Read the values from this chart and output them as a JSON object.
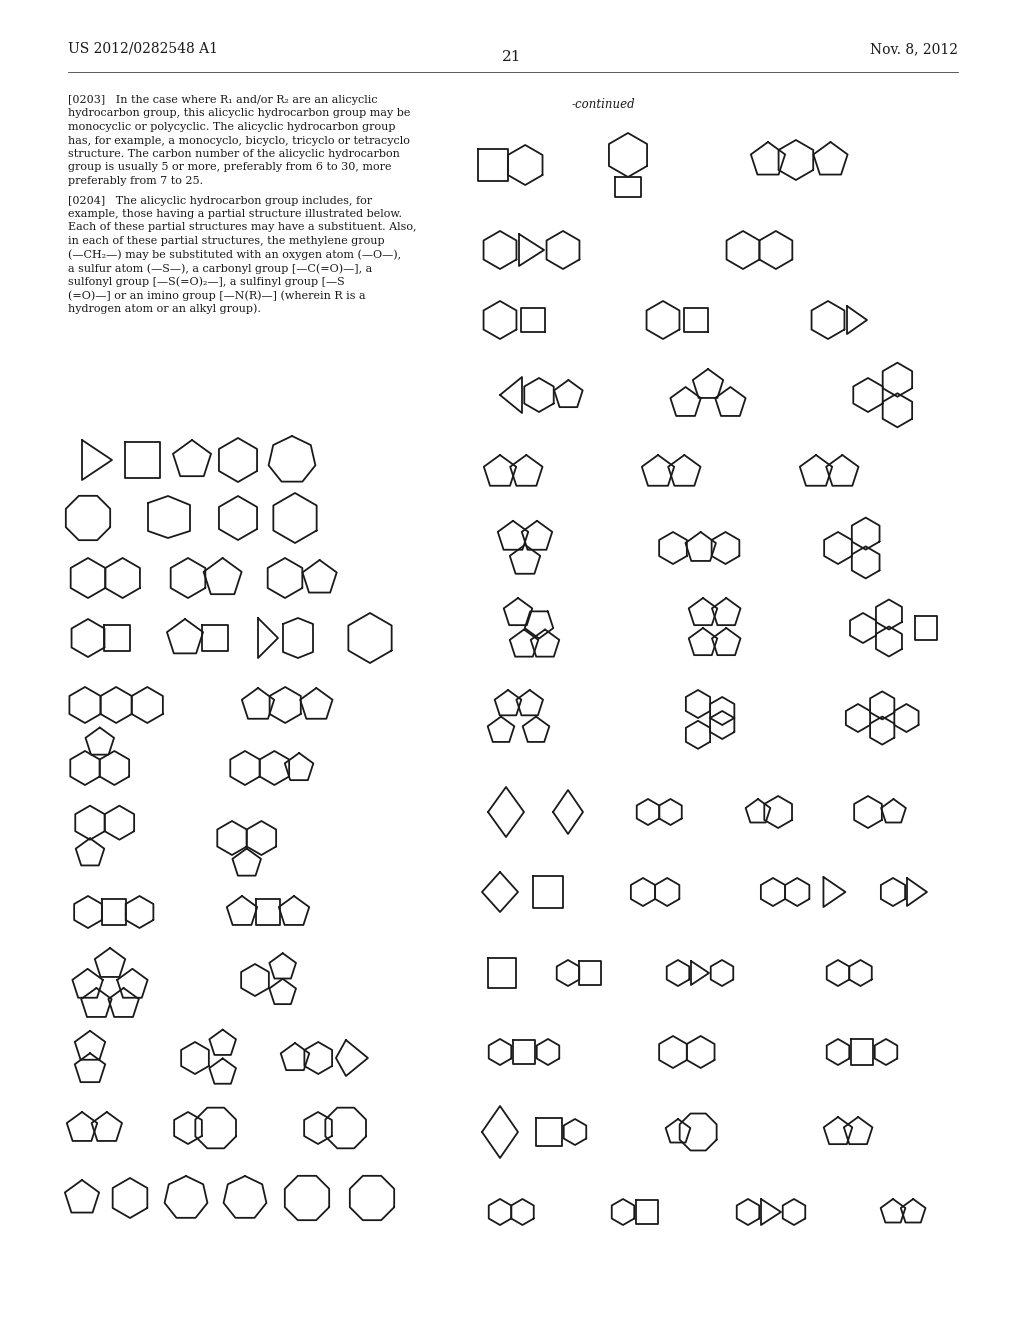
{
  "page_number": "21",
  "patent_number": "US 2012/0282548 A1",
  "date": "Nov. 8, 2012",
  "continued_label": "-continued",
  "background_color": "#ffffff",
  "text_color": "#1a1a1a",
  "line_color": "#1a1a1a",
  "line_width": 1.3,
  "p0203_lines": [
    "[0203]   In the case where R₁ and/or R₂ are an alicyclic",
    "hydrocarbon group, this alicyclic hydrocarbon group may be",
    "monocyclic or polycyclic. The alicyclic hydrocarbon group",
    "has, for example, a monocyclo, bicyclo, tricyclo or tetracyclo",
    "structure. The carbon number of the alicyclic hydrocarbon",
    "group is usually 5 or more, preferably from 6 to 30, more",
    "preferably from 7 to 25."
  ],
  "p0204_lines": [
    "[0204]   The alicyclic hydrocarbon group includes, for",
    "example, those having a partial structure illustrated below.",
    "Each of these partial structures may have a substituent. Also,",
    "in each of these partial structures, the methylene group",
    "(—CH₂—) may be substituted with an oxygen atom (—O—),",
    "a sulfur atom (—S—), a carbonyl group [—C(=O)—], a",
    "sulfonyl group [—S(=O)₂—], a sulfinyl group [—S",
    "(=O)—] or an imino group [—N(R)—] (wherein R is a",
    "hydrogen atom or an alkyl group)."
  ]
}
